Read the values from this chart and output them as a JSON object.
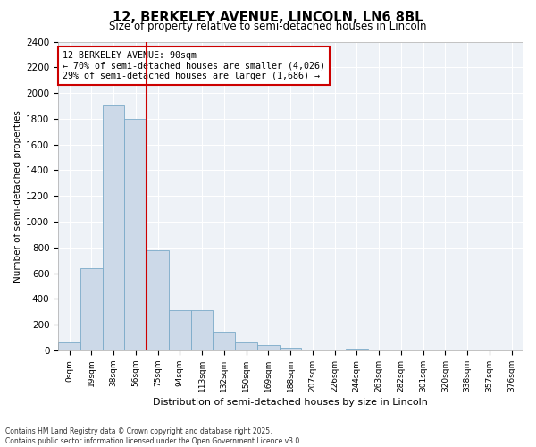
{
  "title": "12, BERKELEY AVENUE, LINCOLN, LN6 8BL",
  "subtitle": "Size of property relative to semi-detached houses in Lincoln",
  "xlabel": "Distribution of semi-detached houses by size in Lincoln",
  "ylabel": "Number of semi-detached properties",
  "bar_color": "#ccd9e8",
  "bar_edge_color": "#7aaac8",
  "background_color": "#eef2f7",
  "grid_color": "#ffffff",
  "categories": [
    "0sqm",
    "19sqm",
    "38sqm",
    "56sqm",
    "75sqm",
    "94sqm",
    "113sqm",
    "132sqm",
    "150sqm",
    "169sqm",
    "188sqm",
    "207sqm",
    "226sqm",
    "244sqm",
    "263sqm",
    "282sqm",
    "301sqm",
    "320sqm",
    "338sqm",
    "357sqm",
    "376sqm"
  ],
  "values": [
    60,
    640,
    1900,
    1800,
    775,
    310,
    315,
    145,
    65,
    40,
    20,
    10,
    5,
    15,
    0,
    0,
    0,
    0,
    0,
    0,
    0
  ],
  "ylim": [
    0,
    2400
  ],
  "yticks": [
    0,
    200,
    400,
    600,
    800,
    1000,
    1200,
    1400,
    1600,
    1800,
    2000,
    2200,
    2400
  ],
  "property_line_color": "#cc0000",
  "annotation_title": "12 BERKELEY AVENUE: 90sqm",
  "annotation_line1": "← 70% of semi-detached houses are smaller (4,026)",
  "annotation_line2": "29% of semi-detached houses are larger (1,686) →",
  "annotation_box_color": "#cc0000",
  "footer_line1": "Contains HM Land Registry data © Crown copyright and database right 2025.",
  "footer_line2": "Contains public sector information licensed under the Open Government Licence v3.0."
}
